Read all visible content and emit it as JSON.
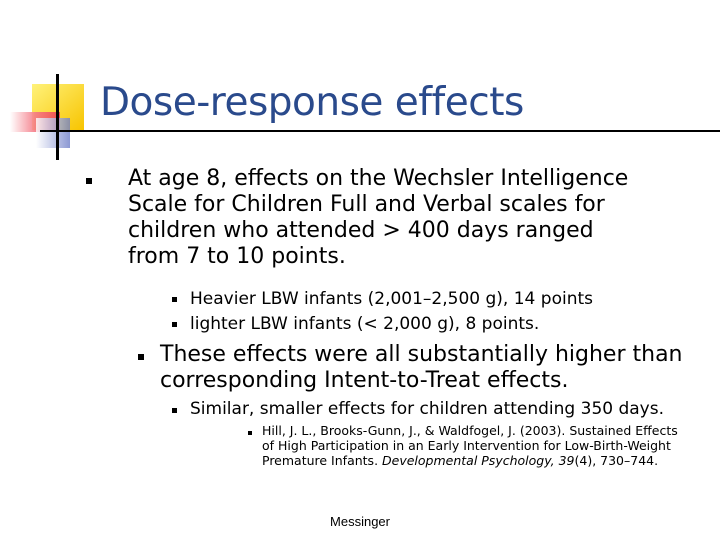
{
  "slide": {
    "title": "Dose-response effects",
    "bullets": {
      "b1_line1": "At age 8, effects on the Wechsler Intelligence",
      "b1_line2": "Scale for Children Full and Verbal scales for",
      "b1_line3": "children who attended > 400 days ranged",
      "b1_line4": "from 7 to 10 points.",
      "b1_sub1": "Heavier LBW infants (2,001–2,500 g), 14 points",
      "b1_sub2": "lighter LBW infants (< 2,000 g), 8 points.",
      "b2_line1": "These effects were all substantially higher than",
      "b2_line2": "corresponding Intent-to-Treat effects.",
      "b2_sub1": "Similar, smaller effects for children attending 350 days.",
      "cite_part1": "Hill, J. L., Brooks-Gunn, J., & Waldfogel, J. (2003). Sustained Effects",
      "cite_part2": "of High Participation in an Early Intervention for Low-Birth-Weight",
      "cite_part3": "Premature Infants. ",
      "cite_journal": "Developmental Psychology, 39",
      "cite_part4": "(4), 730–744."
    },
    "footer": "Messinger"
  },
  "colors": {
    "title": "#2a4a8c",
    "logo_yellow": "#f7d417",
    "logo_red": "#f04050",
    "logo_blue": "#6f7fc8"
  }
}
